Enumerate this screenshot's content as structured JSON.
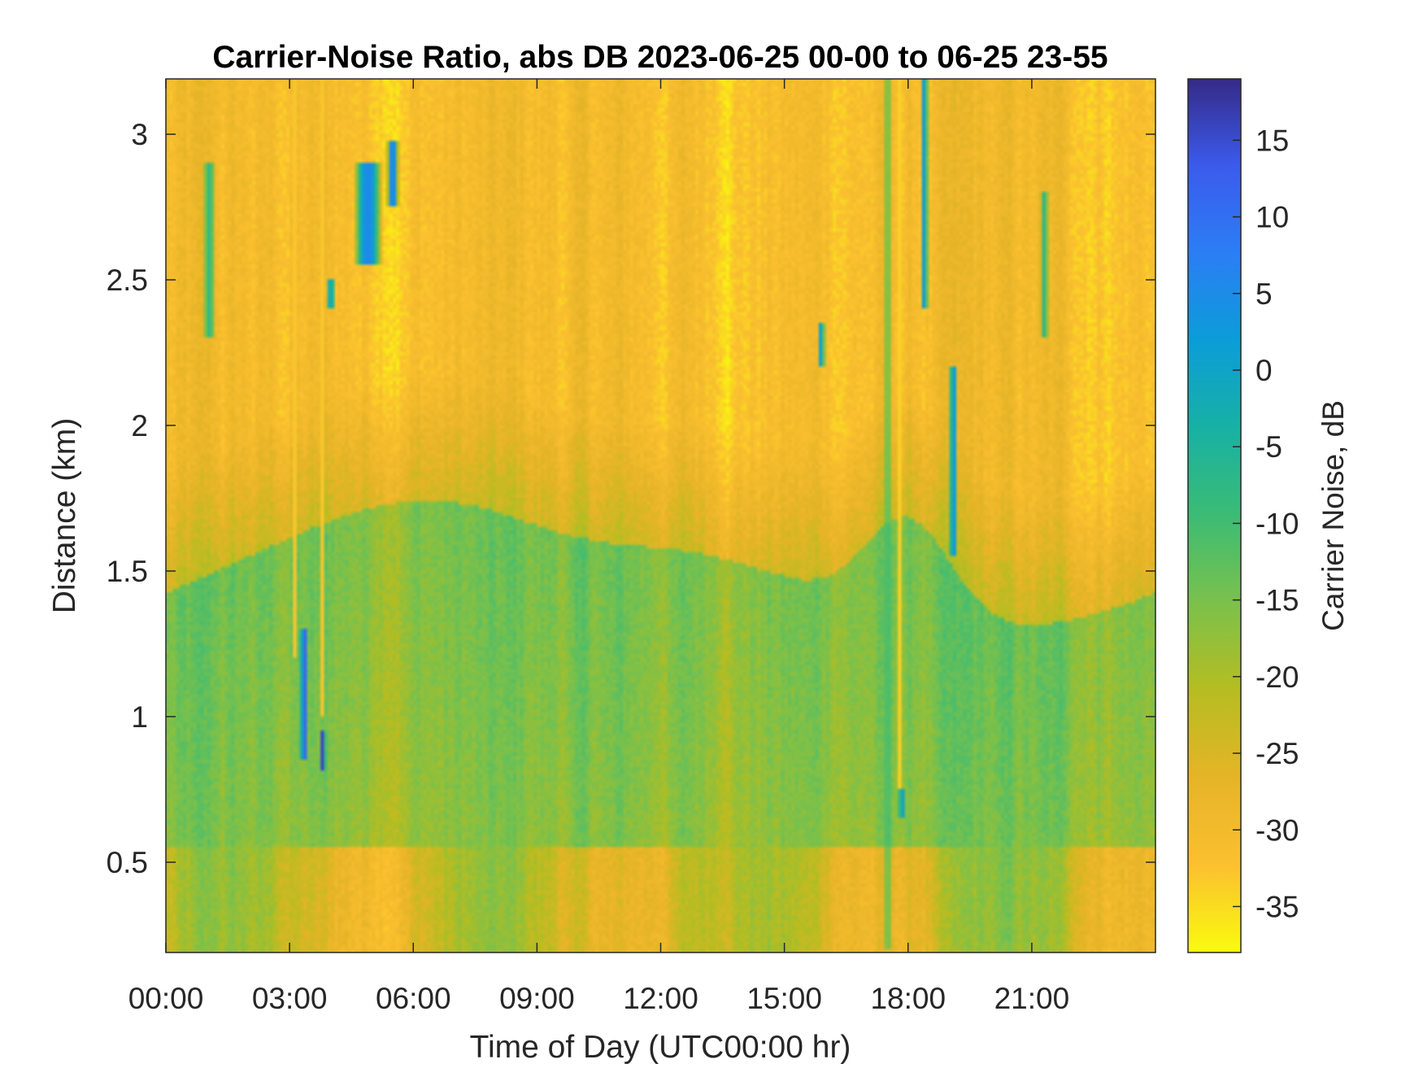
{
  "chart_data": {
    "type": "heatmap",
    "title": "Carrier-Noise Ratio, abs DB 2023-06-25 00-00 to 06-25 23-55",
    "xlabel": "Time of Day (UTC00:00 hr)",
    "ylabel": "Distance (km)",
    "colorbar_label": "Carrier Noise, dB",
    "xlim_hours": [
      0,
      24
    ],
    "ylim_km": [
      0.19,
      3.19
    ],
    "clim_db": [
      -38,
      19
    ],
    "colormap": "parula-reversed",
    "x_ticks": [
      {
        "hour": 0,
        "label": "00:00"
      },
      {
        "hour": 3,
        "label": "03:00"
      },
      {
        "hour": 6,
        "label": "06:00"
      },
      {
        "hour": 9,
        "label": "09:00"
      },
      {
        "hour": 12,
        "label": "12:00"
      },
      {
        "hour": 15,
        "label": "15:00"
      },
      {
        "hour": 18,
        "label": "18:00"
      },
      {
        "hour": 21,
        "label": "21:00"
      }
    ],
    "y_ticks": [
      {
        "value": 0.5,
        "label": "0.5"
      },
      {
        "value": 1,
        "label": "1"
      },
      {
        "value": 1.5,
        "label": "1.5"
      },
      {
        "value": 2,
        "label": "2"
      },
      {
        "value": 2.5,
        "label": "2.5"
      },
      {
        "value": 3,
        "label": "3"
      }
    ],
    "colorbar_ticks": [
      {
        "value": 15,
        "label": "15"
      },
      {
        "value": 10,
        "label": "10"
      },
      {
        "value": 5,
        "label": "5"
      },
      {
        "value": 0,
        "label": "0"
      },
      {
        "value": -5,
        "label": "-5"
      },
      {
        "value": -10,
        "label": "-10"
      },
      {
        "value": -15,
        "label": "-15"
      },
      {
        "value": -20,
        "label": "-20"
      },
      {
        "value": -25,
        "label": "-25"
      },
      {
        "value": -30,
        "label": "-30"
      },
      {
        "value": -35,
        "label": "-35"
      }
    ],
    "grid": false,
    "field_description_db": {
      "upper_layer_above_2km": -31,
      "mid_layer_1p5_to_2km": -24,
      "lower_layer_below_1p5km": -15,
      "strong_returns_blue_db": 12
    }
  },
  "colors": {
    "colormap_stops": [
      "#f9fb0e",
      "#fbc030",
      "#e6b427",
      "#b6bd21",
      "#7bc14b",
      "#3cbc75",
      "#18b1a4",
      "#0b9dd8",
      "#2b7ef4",
      "#3b5bed",
      "#352a87"
    ]
  }
}
